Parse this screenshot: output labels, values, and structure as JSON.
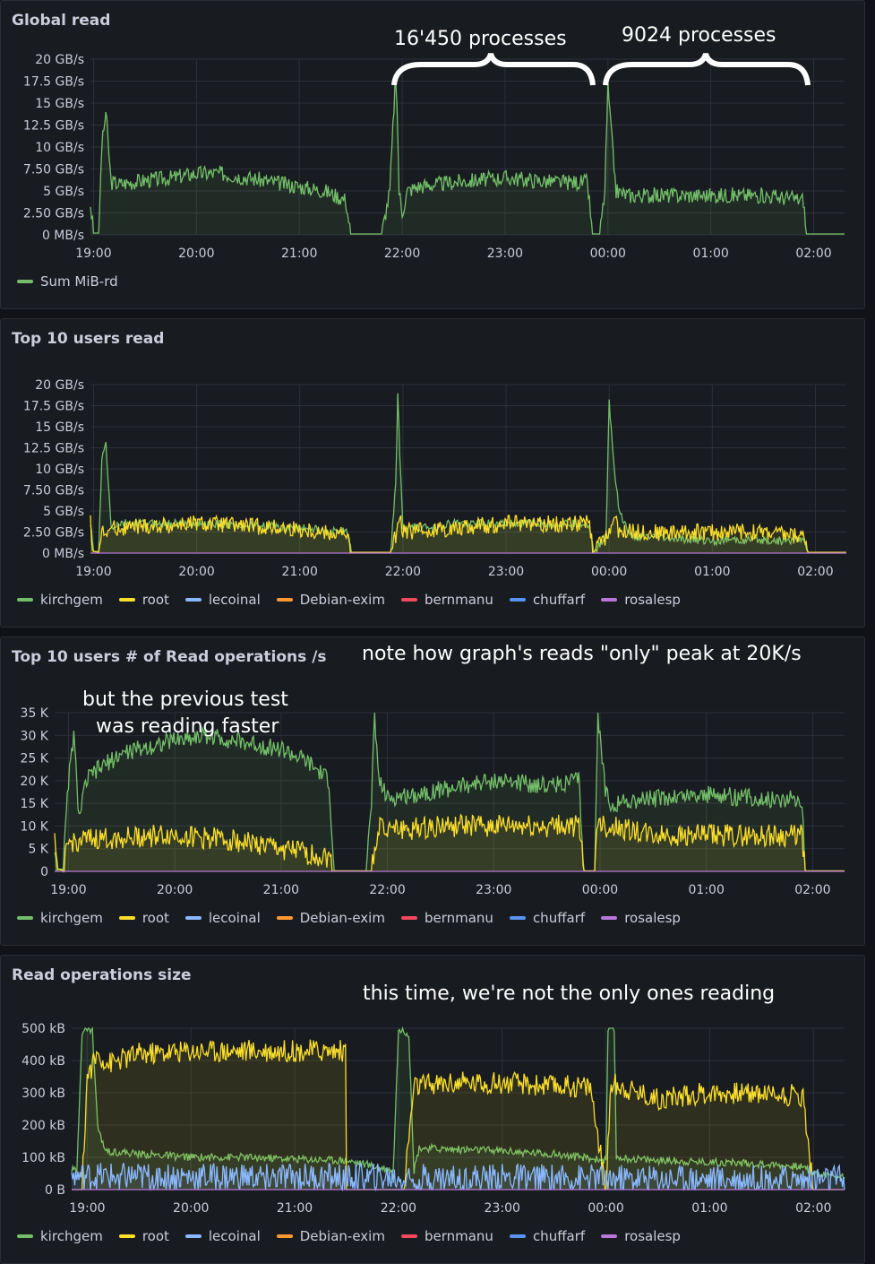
{
  "annotations": {
    "p1_left": "16'450 processes",
    "p1_right": "9024 processes",
    "p3_note": "note how graph's reads \"only\" peak at 20K/s",
    "p3_prev_line1": "but the previous test",
    "p3_prev_line2": "was reading faster",
    "p4_note": "this time, we're not the only ones reading"
  },
  "colors": {
    "kirchgem": "#73bf69",
    "root": "#fade2a",
    "lecoinal": "#8ab8ff",
    "Debian-exim": "#ff9830",
    "bernmanu": "#f2495c",
    "chuffarf": "#5794f2",
    "rosalesp": "#b877d9"
  },
  "chart_data": [
    {
      "type": "area",
      "title": "Global read",
      "xticks": [
        "19:00",
        "20:00",
        "21:00",
        "22:00",
        "23:00",
        "00:00",
        "01:00",
        "02:00"
      ],
      "yticks": [
        "0 MB/s",
        "2.50 GB/s",
        "5 GB/s",
        "7.50 GB/s",
        "10 GB/s",
        "12.5 GB/s",
        "15 GB/s",
        "17.5 GB/s",
        "20 GB/s"
      ],
      "ylim": [
        0,
        20
      ],
      "legend": [
        "Sum MiB-rd"
      ],
      "series": [
        {
          "name": "Sum MiB-rd",
          "color": "#73bf69",
          "x": [
            18.97,
            19.0,
            19.05,
            19.08,
            19.12,
            19.17,
            19.25,
            19.5,
            19.75,
            20.0,
            20.25,
            20.5,
            20.75,
            21.0,
            21.25,
            21.45,
            21.5,
            21.8,
            21.88,
            21.93,
            21.95,
            21.97,
            22.0,
            22.05,
            22.15,
            22.5,
            23.0,
            23.5,
            23.8,
            23.85,
            23.92,
            23.97,
            24.0,
            24.03,
            24.08,
            24.2,
            24.5,
            25.0,
            25.5,
            25.9,
            25.93,
            26.3
          ],
          "y": [
            3.5,
            0.2,
            0.2,
            10,
            14,
            6,
            5.8,
            6.2,
            6.5,
            7,
            7,
            6.5,
            6,
            5.5,
            5,
            4,
            0.1,
            0.1,
            5,
            17,
            15,
            5,
            2.5,
            5,
            5.5,
            6,
            6.5,
            6,
            6,
            0.1,
            0.1,
            5,
            17,
            12,
            5,
            4.5,
            4.5,
            4.5,
            4.5,
            4,
            0.1,
            0.1
          ],
          "noise": 0.9
        }
      ]
    },
    {
      "type": "area",
      "title": "Top 10 users read",
      "xticks": [
        "19:00",
        "20:00",
        "21:00",
        "22:00",
        "23:00",
        "00:00",
        "01:00",
        "02:00"
      ],
      "yticks": [
        "0 MB/s",
        "2.50 GB/s",
        "5 GB/s",
        "7.50 GB/s",
        "10 GB/s",
        "12.5 GB/s",
        "15 GB/s",
        "17.5 GB/s",
        "20 GB/s"
      ],
      "ylim": [
        0,
        20
      ],
      "legend": [
        "kirchgem",
        "root",
        "lecoinal",
        "Debian-exim",
        "bernmanu",
        "chuffarf",
        "rosalesp"
      ],
      "series": [
        {
          "name": "kirchgem",
          "color": "#73bf69",
          "x": [
            18.97,
            19.0,
            19.05,
            19.08,
            19.12,
            19.17,
            19.25,
            19.5,
            20.0,
            20.5,
            21.0,
            21.45,
            21.5,
            21.88,
            21.93,
            21.95,
            21.97,
            22.0,
            22.05,
            22.2,
            22.5,
            23.0,
            23.8,
            23.85,
            23.97,
            24.0,
            24.05,
            24.1,
            24.2,
            24.5,
            25.0,
            25.5,
            25.9,
            25.93,
            26.3
          ],
          "y": [
            3.5,
            0.2,
            0.2,
            11,
            13,
            3,
            3.5,
            3.5,
            3.5,
            3.3,
            3,
            2.5,
            0.1,
            0.1,
            8,
            18.5,
            12,
            3,
            3,
            3,
            3.5,
            3.5,
            3.5,
            0.1,
            2,
            18,
            10,
            5,
            2,
            1.8,
            1.5,
            1.5,
            1.5,
            0.1,
            0.1
          ],
          "noise": 0.5
        },
        {
          "name": "root",
          "color": "#fade2a",
          "x": [
            18.97,
            19.0,
            19.05,
            19.08,
            19.12,
            19.2,
            19.5,
            20.0,
            20.5,
            21.0,
            21.45,
            21.5,
            21.88,
            21.93,
            21.97,
            22.0,
            22.5,
            23.0,
            23.5,
            23.8,
            23.85,
            23.97,
            24.05,
            24.1,
            24.5,
            25.0,
            25.5,
            25.9,
            25.93,
            26.3
          ],
          "y": [
            3.5,
            0.2,
            0.1,
            2.5,
            2.5,
            3,
            3.2,
            3.5,
            3.2,
            2.8,
            2.2,
            0.1,
            0.1,
            2,
            4,
            2.5,
            3,
            3.5,
            3.5,
            3.5,
            0.1,
            2,
            4,
            2.5,
            2.5,
            2.5,
            2.5,
            2,
            0.1,
            0.1
          ],
          "noise": 1.0
        },
        {
          "name": "rosalesp",
          "color": "#b877d9",
          "x": [
            18.97,
            26.3
          ],
          "y": [
            0,
            0
          ],
          "noise": 0
        }
      ]
    },
    {
      "type": "area",
      "title": "Top 10 users # of Read operations /s",
      "xticks": [
        "19:00",
        "20:00",
        "21:00",
        "22:00",
        "23:00",
        "00:00",
        "01:00",
        "02:00"
      ],
      "yticks": [
        "0",
        "5 K",
        "10 K",
        "15 K",
        "20 K",
        "25 K",
        "30 K",
        "35 K"
      ],
      "ylim": [
        0,
        35
      ],
      "legend": [
        "kirchgem",
        "root",
        "lecoinal",
        "Debian-exim",
        "bernmanu",
        "chuffarf",
        "rosalesp"
      ],
      "series": [
        {
          "name": "kirchgem",
          "color": "#73bf69",
          "x": [
            18.87,
            18.9,
            18.95,
            19.0,
            19.05,
            19.1,
            19.17,
            19.25,
            19.5,
            20.0,
            20.3,
            20.75,
            21.0,
            21.25,
            21.45,
            21.5,
            21.8,
            21.85,
            21.88,
            21.92,
            22.0,
            22.5,
            23.0,
            23.5,
            23.8,
            23.85,
            23.95,
            23.98,
            24.05,
            24.1,
            24.5,
            25.0,
            25.5,
            25.9,
            25.93,
            26.3
          ],
          "y": [
            5,
            0.5,
            0.5,
            20,
            30,
            12,
            20,
            22,
            26,
            29,
            30,
            28,
            27,
            24,
            20,
            0.1,
            0.1,
            15,
            35,
            20,
            16,
            18,
            20,
            19,
            20,
            0.1,
            0.1,
            34,
            18,
            15,
            16,
            17,
            16,
            16,
            0.1,
            0.1
          ],
          "noise": 2.0
        },
        {
          "name": "root",
          "color": "#fade2a",
          "x": [
            18.87,
            18.9,
            18.95,
            19.0,
            19.05,
            19.25,
            19.5,
            20.0,
            20.5,
            21.0,
            21.45,
            21.5,
            21.85,
            21.88,
            21.95,
            22.0,
            22.5,
            23.0,
            23.5,
            23.8,
            23.85,
            23.95,
            23.98,
            24.05,
            24.5,
            25.0,
            25.5,
            25.9,
            25.93,
            26.3
          ],
          "y": [
            6,
            0.5,
            0.2,
            6,
            6.5,
            7,
            7.5,
            8,
            7,
            5,
            3,
            0.1,
            0.1,
            5,
            12,
            9,
            10,
            10,
            10,
            10,
            0.1,
            0.1,
            12,
            10,
            8,
            8,
            8,
            8,
            0.1,
            0.1
          ],
          "noise": 2.5
        },
        {
          "name": "rosalesp",
          "color": "#b877d9",
          "x": [
            18.87,
            26.3
          ],
          "y": [
            0,
            0
          ],
          "noise": 0
        }
      ]
    },
    {
      "type": "area",
      "title": "Read operations size",
      "xticks": [
        "19:00",
        "20:00",
        "21:00",
        "22:00",
        "23:00",
        "00:00",
        "01:00",
        "02:00"
      ],
      "yticks": [
        "0 B",
        "100 kB",
        "200 kB",
        "300 kB",
        "400 kB",
        "500 kB"
      ],
      "ylim": [
        0,
        500
      ],
      "legend": [
        "kirchgem",
        "root",
        "lecoinal",
        "Debian-exim",
        "bernmanu",
        "chuffarf",
        "rosalesp"
      ],
      "series": [
        {
          "name": "kirchgem",
          "color": "#73bf69",
          "x": [
            18.85,
            18.9,
            18.95,
            19.0,
            19.05,
            19.1,
            19.15,
            19.2,
            19.5,
            20.0,
            20.5,
            21.0,
            21.5,
            21.95,
            22.0,
            22.05,
            22.1,
            22.15,
            22.2,
            22.5,
            23.0,
            23.5,
            24.0,
            24.02,
            24.08,
            24.1,
            24.5,
            25.0,
            25.5,
            25.9,
            26.0,
            26.3
          ],
          "y": [
            60,
            60,
            490,
            495,
            495,
            200,
            140,
            120,
            110,
            100,
            100,
            95,
            90,
            60,
            490,
            495,
            480,
            60,
            130,
            125,
            120,
            110,
            90,
            495,
            495,
            100,
            90,
            85,
            80,
            70,
            50,
            40
          ],
          "noise": 12
        },
        {
          "name": "root",
          "color": "#fade2a",
          "x": [
            18.85,
            18.9,
            18.95,
            19.0,
            19.1,
            19.2,
            19.5,
            20.0,
            20.5,
            21.0,
            21.5,
            21.5,
            22.0,
            22.05,
            22.15,
            22.5,
            23.0,
            23.5,
            23.85,
            24.0,
            24.05,
            24.5,
            25.0,
            25.5,
            25.9,
            26.0,
            26.3
          ],
          "y": [
            0,
            0,
            0,
            350,
            420,
            390,
            420,
            430,
            430,
            430,
            430,
            0,
            0,
            0,
            320,
            330,
            330,
            320,
            320,
            0,
            330,
            280,
            300,
            300,
            290,
            0,
            0
          ],
          "noise": 35
        },
        {
          "name": "lecoinal",
          "color": "#8ab8ff",
          "x": [
            18.85,
            26.3
          ],
          "y": [
            40,
            30
          ],
          "noise": 45
        },
        {
          "name": "rosalesp",
          "color": "#b877d9",
          "x": [
            18.85,
            26.3
          ],
          "y": [
            0,
            0
          ],
          "noise": 0
        }
      ]
    }
  ]
}
